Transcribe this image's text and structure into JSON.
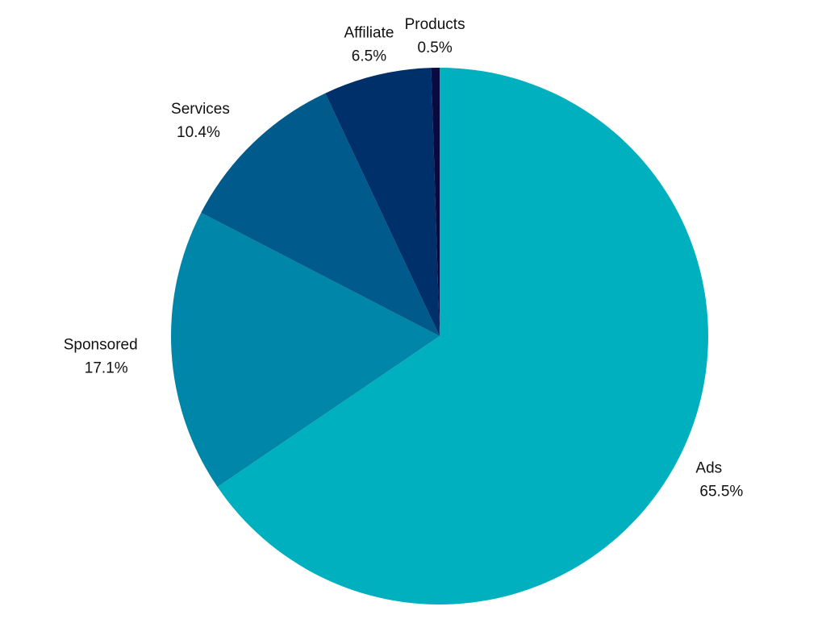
{
  "chart_data": {
    "type": "pie",
    "title": "",
    "start_angle": "top",
    "direction": "clockwise",
    "legend": "none",
    "slices": [
      {
        "label": "Ads",
        "value": 65.5,
        "value_label": "65.5%",
        "color": "#00b0be"
      },
      {
        "label": "Sponsored",
        "value": 17.1,
        "value_label": "17.1%",
        "color": "#0086a8"
      },
      {
        "label": "Services",
        "value": 10.4,
        "value_label": "10.4%",
        "color": "#005a8c"
      },
      {
        "label": "Affiliate",
        "value": 6.5,
        "value_label": "6.5%",
        "color": "#00306a"
      },
      {
        "label": "Products",
        "value": 0.5,
        "value_label": "0.5%",
        "color": "#0a0a40"
      }
    ]
  }
}
